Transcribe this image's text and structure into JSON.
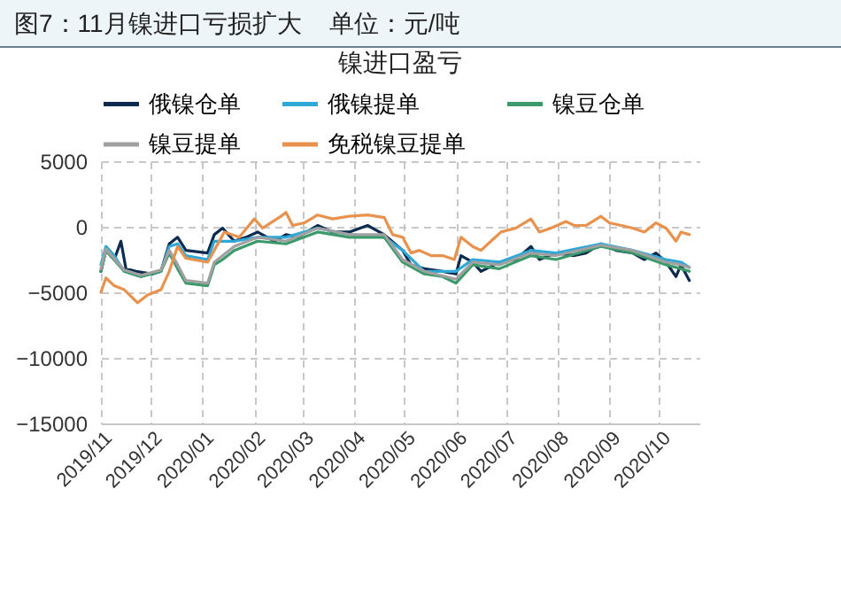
{
  "chart_data": {
    "type": "line",
    "title": "图7：11月镍进口亏损扩大    单位：元/吨",
    "subtitle": "镍进口盈亏",
    "xlim": [
      "2019-11-01",
      "2020-10-25"
    ],
    "xticks": [
      {
        "value": "2019-11-01",
        "label": "2019/11"
      },
      {
        "value": "2019-12-01",
        "label": "2019/12"
      },
      {
        "value": "2020-01-01",
        "label": "2020/01"
      },
      {
        "value": "2020-02-01",
        "label": "2020/02"
      },
      {
        "value": "2020-03-01",
        "label": "2020/03"
      },
      {
        "value": "2020-04-01",
        "label": "2020/04"
      },
      {
        "value": "2020-05-01",
        "label": "2020/05"
      },
      {
        "value": "2020-06-01",
        "label": "2020/06"
      },
      {
        "value": "2020-07-01",
        "label": "2020/07"
      },
      {
        "value": "2020-08-01",
        "label": "2020/08"
      },
      {
        "value": "2020-09-01",
        "label": "2020/09"
      },
      {
        "value": "2020-10-01",
        "label": "2020/10"
      }
    ],
    "ylim": [
      -15000,
      5000
    ],
    "yticks": [
      -15000,
      -10000,
      -5000,
      0,
      5000
    ],
    "grid": true,
    "legend": "top",
    "series": [
      {
        "name": "俄镍仓单",
        "color": "#0d2a4f",
        "x": [
          "2019-11-01",
          "2019-11-04",
          "2019-11-09",
          "2019-11-13",
          "2019-11-16",
          "2019-11-22",
          "2019-12-02",
          "2019-12-07",
          "2019-12-12",
          "2019-12-17",
          "2019-12-22",
          "2020-01-04",
          "2020-01-08",
          "2020-01-13",
          "2020-01-20",
          "2020-01-27",
          "2020-02-03",
          "2020-02-13",
          "2020-02-20",
          "2020-02-27",
          "2020-03-10",
          "2020-03-19",
          "2020-03-29",
          "2020-04-09",
          "2020-04-19",
          "2020-04-30",
          "2020-05-05",
          "2020-05-13",
          "2020-05-24",
          "2020-06-01",
          "2020-06-04",
          "2020-06-11",
          "2020-06-16",
          "2020-06-27",
          "2020-07-07",
          "2020-07-16",
          "2020-07-21",
          "2020-07-31",
          "2020-08-11",
          "2020-08-18",
          "2020-08-27",
          "2020-09-05",
          "2020-09-15",
          "2020-09-22",
          "2020-09-29",
          "2020-10-05",
          "2020-10-11",
          "2020-10-14",
          "2020-10-19"
        ],
        "values": [
          -3400,
          -1800,
          -2500,
          -1100,
          -3200,
          -3400,
          -3600,
          -3400,
          -1300,
          -800,
          -1800,
          -2000,
          -600,
          -100,
          -1100,
          -800,
          -400,
          -1100,
          -600,
          -800,
          100,
          -400,
          -400,
          100,
          -600,
          -1800,
          -2900,
          -3200,
          -3400,
          -3600,
          -2200,
          -2700,
          -3400,
          -2700,
          -2500,
          -1500,
          -2500,
          -2000,
          -2200,
          -2000,
          -1300,
          -1800,
          -2000,
          -2500,
          -2000,
          -2700,
          -3800,
          -2900,
          -4100
        ]
      },
      {
        "name": "俄镍提单",
        "color": "#2fa8d8",
        "x": [
          "2019-11-01",
          "2019-11-04",
          "2019-11-09",
          "2019-11-15",
          "2019-11-25",
          "2019-12-07",
          "2019-12-12",
          "2019-12-17",
          "2019-12-22",
          "2020-01-04",
          "2020-01-08",
          "2020-01-20",
          "2020-02-03",
          "2020-02-20",
          "2020-03-10",
          "2020-03-29",
          "2020-04-19",
          "2020-04-30",
          "2020-05-13",
          "2020-06-01",
          "2020-06-11",
          "2020-06-27",
          "2020-07-16",
          "2020-07-31",
          "2020-08-27",
          "2020-09-15",
          "2020-10-05",
          "2020-10-14",
          "2020-10-19"
        ],
        "values": [
          -2900,
          -1500,
          -2200,
          -3400,
          -3800,
          -3400,
          -1500,
          -1300,
          -2200,
          -2500,
          -1100,
          -1100,
          -800,
          -800,
          -100,
          -600,
          -800,
          -1800,
          -3400,
          -3400,
          -2500,
          -2700,
          -1800,
          -2000,
          -1300,
          -1800,
          -2500,
          -2700,
          -3100
        ]
      },
      {
        "name": "镍豆仓单",
        "color": "#3a9a6a",
        "x": [
          "2019-11-01",
          "2019-11-04",
          "2019-11-15",
          "2019-11-25",
          "2019-12-07",
          "2019-12-12",
          "2019-12-17",
          "2019-12-22",
          "2020-01-04",
          "2020-01-08",
          "2020-01-13",
          "2020-01-20",
          "2020-02-03",
          "2020-02-20",
          "2020-03-10",
          "2020-03-29",
          "2020-04-19",
          "2020-04-30",
          "2020-05-13",
          "2020-05-24",
          "2020-06-01",
          "2020-06-11",
          "2020-06-27",
          "2020-07-16",
          "2020-07-31",
          "2020-08-27",
          "2020-09-15",
          "2020-10-05",
          "2020-10-14",
          "2020-10-19"
        ],
        "values": [
          -3400,
          -1800,
          -3400,
          -3800,
          -3400,
          -2000,
          -3200,
          -4300,
          -4500,
          -2900,
          -2500,
          -1800,
          -1100,
          -1300,
          -400,
          -800,
          -800,
          -2700,
          -3600,
          -3800,
          -4300,
          -2900,
          -3200,
          -2200,
          -2500,
          -1500,
          -2000,
          -2900,
          -3200,
          -3400
        ]
      },
      {
        "name": "镍豆提单",
        "color": "#a0a0a0",
        "x": [
          "2019-11-01",
          "2019-11-04",
          "2019-11-15",
          "2019-11-25",
          "2019-12-07",
          "2019-12-12",
          "2019-12-17",
          "2019-12-22",
          "2020-01-04",
          "2020-01-08",
          "2020-01-20",
          "2020-02-03",
          "2020-02-20",
          "2020-03-10",
          "2020-03-29",
          "2020-04-19",
          "2020-04-30",
          "2020-05-13",
          "2020-06-01",
          "2020-06-11",
          "2020-06-27",
          "2020-07-16",
          "2020-07-31",
          "2020-08-27",
          "2020-09-15",
          "2020-10-05",
          "2020-10-14",
          "2020-10-19"
        ],
        "values": [
          -3200,
          -1700,
          -3300,
          -3700,
          -3300,
          -1800,
          -2900,
          -4100,
          -4300,
          -2700,
          -1500,
          -800,
          -1100,
          -100,
          -600,
          -600,
          -2500,
          -3400,
          -4000,
          -2700,
          -2900,
          -2000,
          -2200,
          -1400,
          -1800,
          -2700,
          -2900,
          -3100
        ]
      },
      {
        "name": "免税镍豆提单",
        "color": "#e8924e",
        "x": [
          "2019-11-01",
          "2019-11-04",
          "2019-11-09",
          "2019-11-15",
          "2019-11-23",
          "2019-11-29",
          "2019-12-07",
          "2019-12-12",
          "2019-12-17",
          "2019-12-22",
          "2020-01-04",
          "2020-01-08",
          "2020-01-14",
          "2020-01-23",
          "2020-02-01",
          "2020-02-06",
          "2020-02-17",
          "2020-02-20",
          "2020-02-24",
          "2020-03-02",
          "2020-03-10",
          "2020-03-19",
          "2020-03-29",
          "2020-04-09",
          "2020-04-19",
          "2020-04-24",
          "2020-04-30",
          "2020-05-05",
          "2020-05-10",
          "2020-05-17",
          "2020-05-24",
          "2020-05-31",
          "2020-06-04",
          "2020-06-11",
          "2020-06-16",
          "2020-06-22",
          "2020-06-28",
          "2020-07-07",
          "2020-07-16",
          "2020-07-21",
          "2020-07-28",
          "2020-08-06",
          "2020-08-11",
          "2020-08-18",
          "2020-08-27",
          "2020-09-01",
          "2020-09-08",
          "2020-09-15",
          "2020-09-22",
          "2020-09-29",
          "2020-10-05",
          "2020-10-11",
          "2020-10-14",
          "2020-10-19"
        ],
        "values": [
          -5000,
          -3900,
          -4500,
          -4800,
          -5800,
          -5200,
          -4800,
          -3400,
          -1500,
          -2400,
          -2700,
          -1800,
          -400,
          -800,
          600,
          -100,
          800,
          1100,
          100,
          300,
          900,
          600,
          800,
          900,
          700,
          -600,
          -800,
          -2000,
          -1800,
          -2200,
          -2200,
          -2500,
          -800,
          -1500,
          -1800,
          -1100,
          -400,
          -100,
          600,
          -400,
          -100,
          400,
          100,
          100,
          800,
          300,
          100,
          -100,
          -400,
          300,
          -100,
          -1100,
          -400,
          -600
        ]
      }
    ]
  }
}
